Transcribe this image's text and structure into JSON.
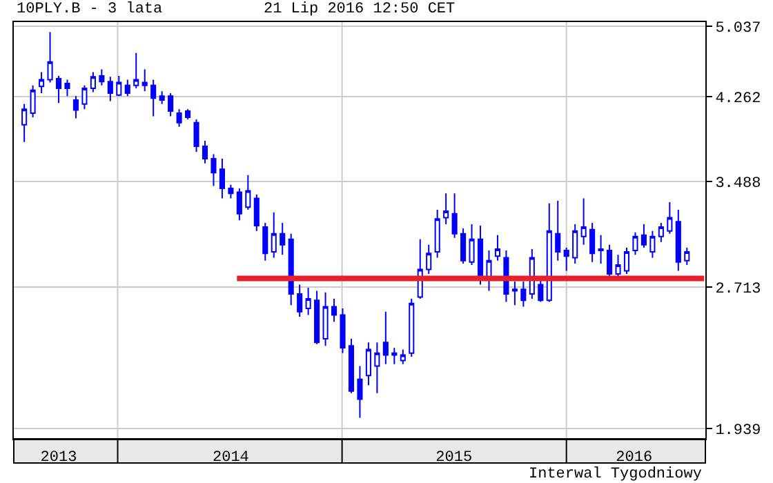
{
  "chart_data": {
    "type": "candlestick",
    "title": "10PLY.B - 3 lata",
    "annotations": [
      "21 Lip 2016 12:50 CET",
      "Interwal Tygodniowy"
    ],
    "x": [
      "2013-08-02",
      "2013-08-16",
      "2013-08-30",
      "2013-09-13",
      "2013-09-27",
      "2013-10-11",
      "2013-10-25",
      "2013-11-08",
      "2013-11-22",
      "2013-12-06",
      "2013-12-20",
      "2014-01-03",
      "2014-01-17",
      "2014-01-31",
      "2014-02-14",
      "2014-02-28",
      "2014-03-14",
      "2014-03-28",
      "2014-04-11",
      "2014-04-25",
      "2014-05-09",
      "2014-05-23",
      "2014-06-06",
      "2014-06-20",
      "2014-07-04",
      "2014-07-18",
      "2014-08-01",
      "2014-08-15",
      "2014-08-29",
      "2014-09-12",
      "2014-09-26",
      "2014-10-10",
      "2014-10-24",
      "2014-11-07",
      "2014-11-21",
      "2014-12-05",
      "2014-12-19",
      "2015-01-02",
      "2015-01-16",
      "2015-01-30",
      "2015-02-13",
      "2015-02-27",
      "2015-03-13",
      "2015-03-27",
      "2015-04-10",
      "2015-04-24",
      "2015-05-08",
      "2015-05-22",
      "2015-06-05",
      "2015-06-19",
      "2015-07-03",
      "2015-07-17",
      "2015-07-31",
      "2015-08-14",
      "2015-08-28",
      "2015-09-11",
      "2015-09-25",
      "2015-10-09",
      "2015-10-23",
      "2015-11-06",
      "2015-11-20",
      "2015-12-04",
      "2015-12-18",
      "2016-01-01",
      "2016-01-15",
      "2016-01-29",
      "2016-02-12",
      "2016-02-26",
      "2016-03-11",
      "2016-03-25",
      "2016-04-08",
      "2016-04-22",
      "2016-05-06",
      "2016-05-20",
      "2016-06-03",
      "2016-06-17",
      "2016-07-01",
      "2016-07-15"
    ],
    "series": [
      {
        "color": "#0000ff",
        "ohlc": [
          [
            3.99,
            4.19,
            3.83,
            4.14
          ],
          [
            4.1,
            4.38,
            4.06,
            4.33
          ],
          [
            4.37,
            4.52,
            4.3,
            4.44
          ],
          [
            4.44,
            4.97,
            4.41,
            4.63
          ],
          [
            4.45,
            4.48,
            4.2,
            4.35
          ],
          [
            4.4,
            4.44,
            4.27,
            4.35
          ],
          [
            4.23,
            4.27,
            4.05,
            4.13
          ],
          [
            4.19,
            4.38,
            4.14,
            4.35
          ],
          [
            4.35,
            4.52,
            4.31,
            4.47
          ],
          [
            4.48,
            4.55,
            4.38,
            4.42
          ],
          [
            4.42,
            4.47,
            4.22,
            4.3
          ],
          [
            4.28,
            4.48,
            4.27,
            4.41
          ],
          [
            4.38,
            4.44,
            4.27,
            4.3
          ],
          [
            4.38,
            4.73,
            4.35,
            4.44
          ],
          [
            4.41,
            4.55,
            4.32,
            4.38
          ],
          [
            4.38,
            4.44,
            4.07,
            4.25
          ],
          [
            4.27,
            4.32,
            4.19,
            4.23
          ],
          [
            4.27,
            4.3,
            4.07,
            4.12
          ],
          [
            4.1,
            4.14,
            3.97,
            4.01
          ],
          [
            4.12,
            4.14,
            4.04,
            4.06
          ],
          [
            4.01,
            4.04,
            3.74,
            3.79
          ],
          [
            3.79,
            3.84,
            3.64,
            3.68
          ],
          [
            3.68,
            3.72,
            3.45,
            3.56
          ],
          [
            3.59,
            3.68,
            3.35,
            3.43
          ],
          [
            3.43,
            3.46,
            3.35,
            3.39
          ],
          [
            3.4,
            3.43,
            3.18,
            3.23
          ],
          [
            3.28,
            3.54,
            3.26,
            3.41
          ],
          [
            3.35,
            3.38,
            3.1,
            3.14
          ],
          [
            3.13,
            3.16,
            2.89,
            2.94
          ],
          [
            2.95,
            3.24,
            2.91,
            3.08
          ],
          [
            3.08,
            3.16,
            2.93,
            3.0
          ],
          [
            3.04,
            3.08,
            2.6,
            2.67
          ],
          [
            2.67,
            2.73,
            2.53,
            2.56
          ],
          [
            2.58,
            2.71,
            2.54,
            2.64
          ],
          [
            2.63,
            2.69,
            2.37,
            2.38
          ],
          [
            2.4,
            2.68,
            2.36,
            2.59
          ],
          [
            2.59,
            2.64,
            2.5,
            2.54
          ],
          [
            2.54,
            2.58,
            2.32,
            2.35
          ],
          [
            2.36,
            2.4,
            2.11,
            2.12
          ],
          [
            2.18,
            2.25,
            1.99,
            2.08
          ],
          [
            2.2,
            2.38,
            2.15,
            2.34
          ],
          [
            2.25,
            2.38,
            2.11,
            2.32
          ],
          [
            2.38,
            2.56,
            2.26,
            2.31
          ],
          [
            2.31,
            2.35,
            2.26,
            2.32
          ],
          [
            2.28,
            2.34,
            2.26,
            2.31
          ],
          [
            2.32,
            2.64,
            2.3,
            2.61
          ],
          [
            2.65,
            3.04,
            2.64,
            2.83
          ],
          [
            2.83,
            3.0,
            2.8,
            2.94
          ],
          [
            2.95,
            3.26,
            2.91,
            3.19
          ],
          [
            3.2,
            3.39,
            3.15,
            3.25
          ],
          [
            3.23,
            3.39,
            3.05,
            3.08
          ],
          [
            3.08,
            3.12,
            2.87,
            2.89
          ],
          [
            2.88,
            3.15,
            2.86,
            3.04
          ],
          [
            3.04,
            3.14,
            2.73,
            2.76
          ],
          [
            2.77,
            2.96,
            2.69,
            2.89
          ],
          [
            2.92,
            3.07,
            2.89,
            2.97
          ],
          [
            2.91,
            2.96,
            2.62,
            2.67
          ],
          [
            2.69,
            2.75,
            2.6,
            2.7
          ],
          [
            2.7,
            2.75,
            2.59,
            2.63
          ],
          [
            2.67,
            2.97,
            2.64,
            2.91
          ],
          [
            2.73,
            2.77,
            2.62,
            2.63
          ],
          [
            2.63,
            3.31,
            2.62,
            3.1
          ],
          [
            3.08,
            3.33,
            2.89,
            2.95
          ],
          [
            2.96,
            2.98,
            2.82,
            2.92
          ],
          [
            2.91,
            3.15,
            2.87,
            3.1
          ],
          [
            3.06,
            3.35,
            3.0,
            3.13
          ],
          [
            3.11,
            3.16,
            2.88,
            2.94
          ],
          [
            2.96,
            3.07,
            2.87,
            2.97
          ],
          [
            2.96,
            3.0,
            2.77,
            2.8
          ],
          [
            2.8,
            2.93,
            2.78,
            2.86
          ],
          [
            2.82,
            2.98,
            2.8,
            2.95
          ],
          [
            2.96,
            3.09,
            2.93,
            3.06
          ],
          [
            3.07,
            3.15,
            2.98,
            3.0
          ],
          [
            2.95,
            3.1,
            2.91,
            3.06
          ],
          [
            3.06,
            3.16,
            3.02,
            3.13
          ],
          [
            3.1,
            3.32,
            3.08,
            3.2
          ],
          [
            3.17,
            3.26,
            2.82,
            2.88
          ],
          [
            2.89,
            2.98,
            2.86,
            2.95
          ]
        ]
      },
      {
        "type": "line",
        "color": "#e8202a",
        "x": [
          "2014-07-14",
          "2016-08-12"
        ],
        "values": [
          2.77,
          2.77
        ]
      }
    ],
    "xlim": [
      "2013-07-16",
      "2016-08-14"
    ],
    "xticks": [
      {
        "value": "2013-09-27",
        "label": "2013"
      },
      {
        "value": "2014-01-01",
        "label": null
      },
      {
        "value": "2014-07-04",
        "label": "2014"
      },
      {
        "value": "2015-01-01",
        "label": null
      },
      {
        "value": "2015-07-02",
        "label": "2015"
      },
      {
        "value": "2016-01-01",
        "label": null
      },
      {
        "value": "2016-04-20",
        "label": "2016"
      }
    ],
    "ylim": [
      1.893,
      5.09
    ],
    "yticks": [
      1.939,
      2.713,
      3.488,
      4.262,
      5.037
    ],
    "log": true,
    "grid": true
  }
}
